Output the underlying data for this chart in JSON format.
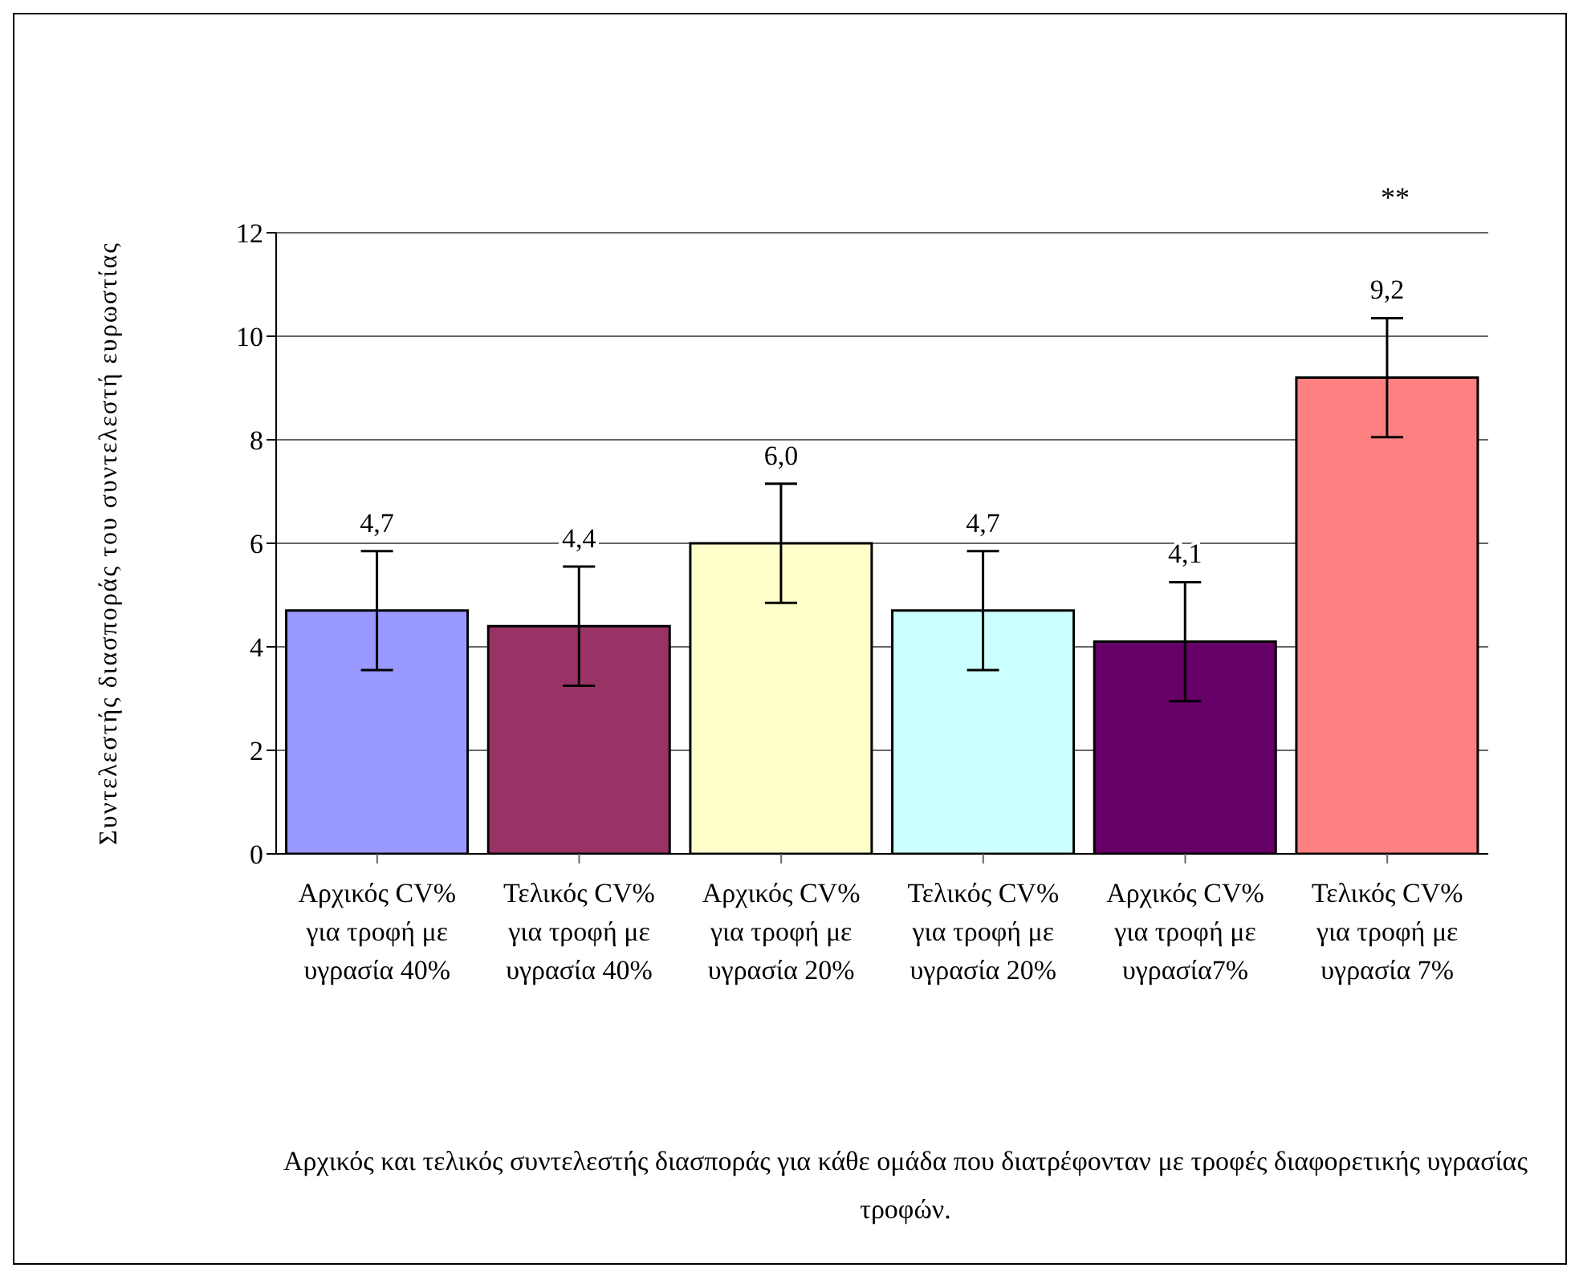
{
  "chart_data": {
    "type": "bar",
    "ylabel": "Συντελεστής διασποράς του συντελεστή ευρωστίας",
    "categories": [
      "Αρχικός CV% για τροφή με υγρασία 40%",
      "Τελικός CV% για τροφή με υγρασία 40%",
      "Αρχικός CV% για τροφή με υγρασία 20%",
      "Τελικός CV% για τροφή με υγρασία 20%",
      "Αρχικός CV% για τροφή με υγρασία7%",
      "Τελικός CV% για τροφή με υγρασία 7%"
    ],
    "values": [
      4.7,
      4.4,
      6.0,
      4.7,
      4.1,
      9.2
    ],
    "colors": [
      "#9999ff",
      "#993366",
      "#ffffcc",
      "#ccffff",
      "#660066",
      "#ff8080"
    ],
    "errors": [
      1.15,
      1.15,
      1.15,
      1.15,
      1.15,
      1.15
    ],
    "value_labels": [
      "4,7",
      "4,4",
      "6,0",
      "4,7",
      "4,1",
      "9,2"
    ],
    "ylim": [
      0,
      12
    ],
    "yticks": [
      0,
      2,
      4,
      6,
      8,
      10,
      12
    ],
    "grid": "y",
    "legend": false,
    "annotations": [
      "**",
      "Αρχικός και τελικός συντελεστής διασποράς για κάθε ομάδα που διατρέφονταν με τροφές διαφορετικής υγρασίας τροφών."
    ]
  }
}
